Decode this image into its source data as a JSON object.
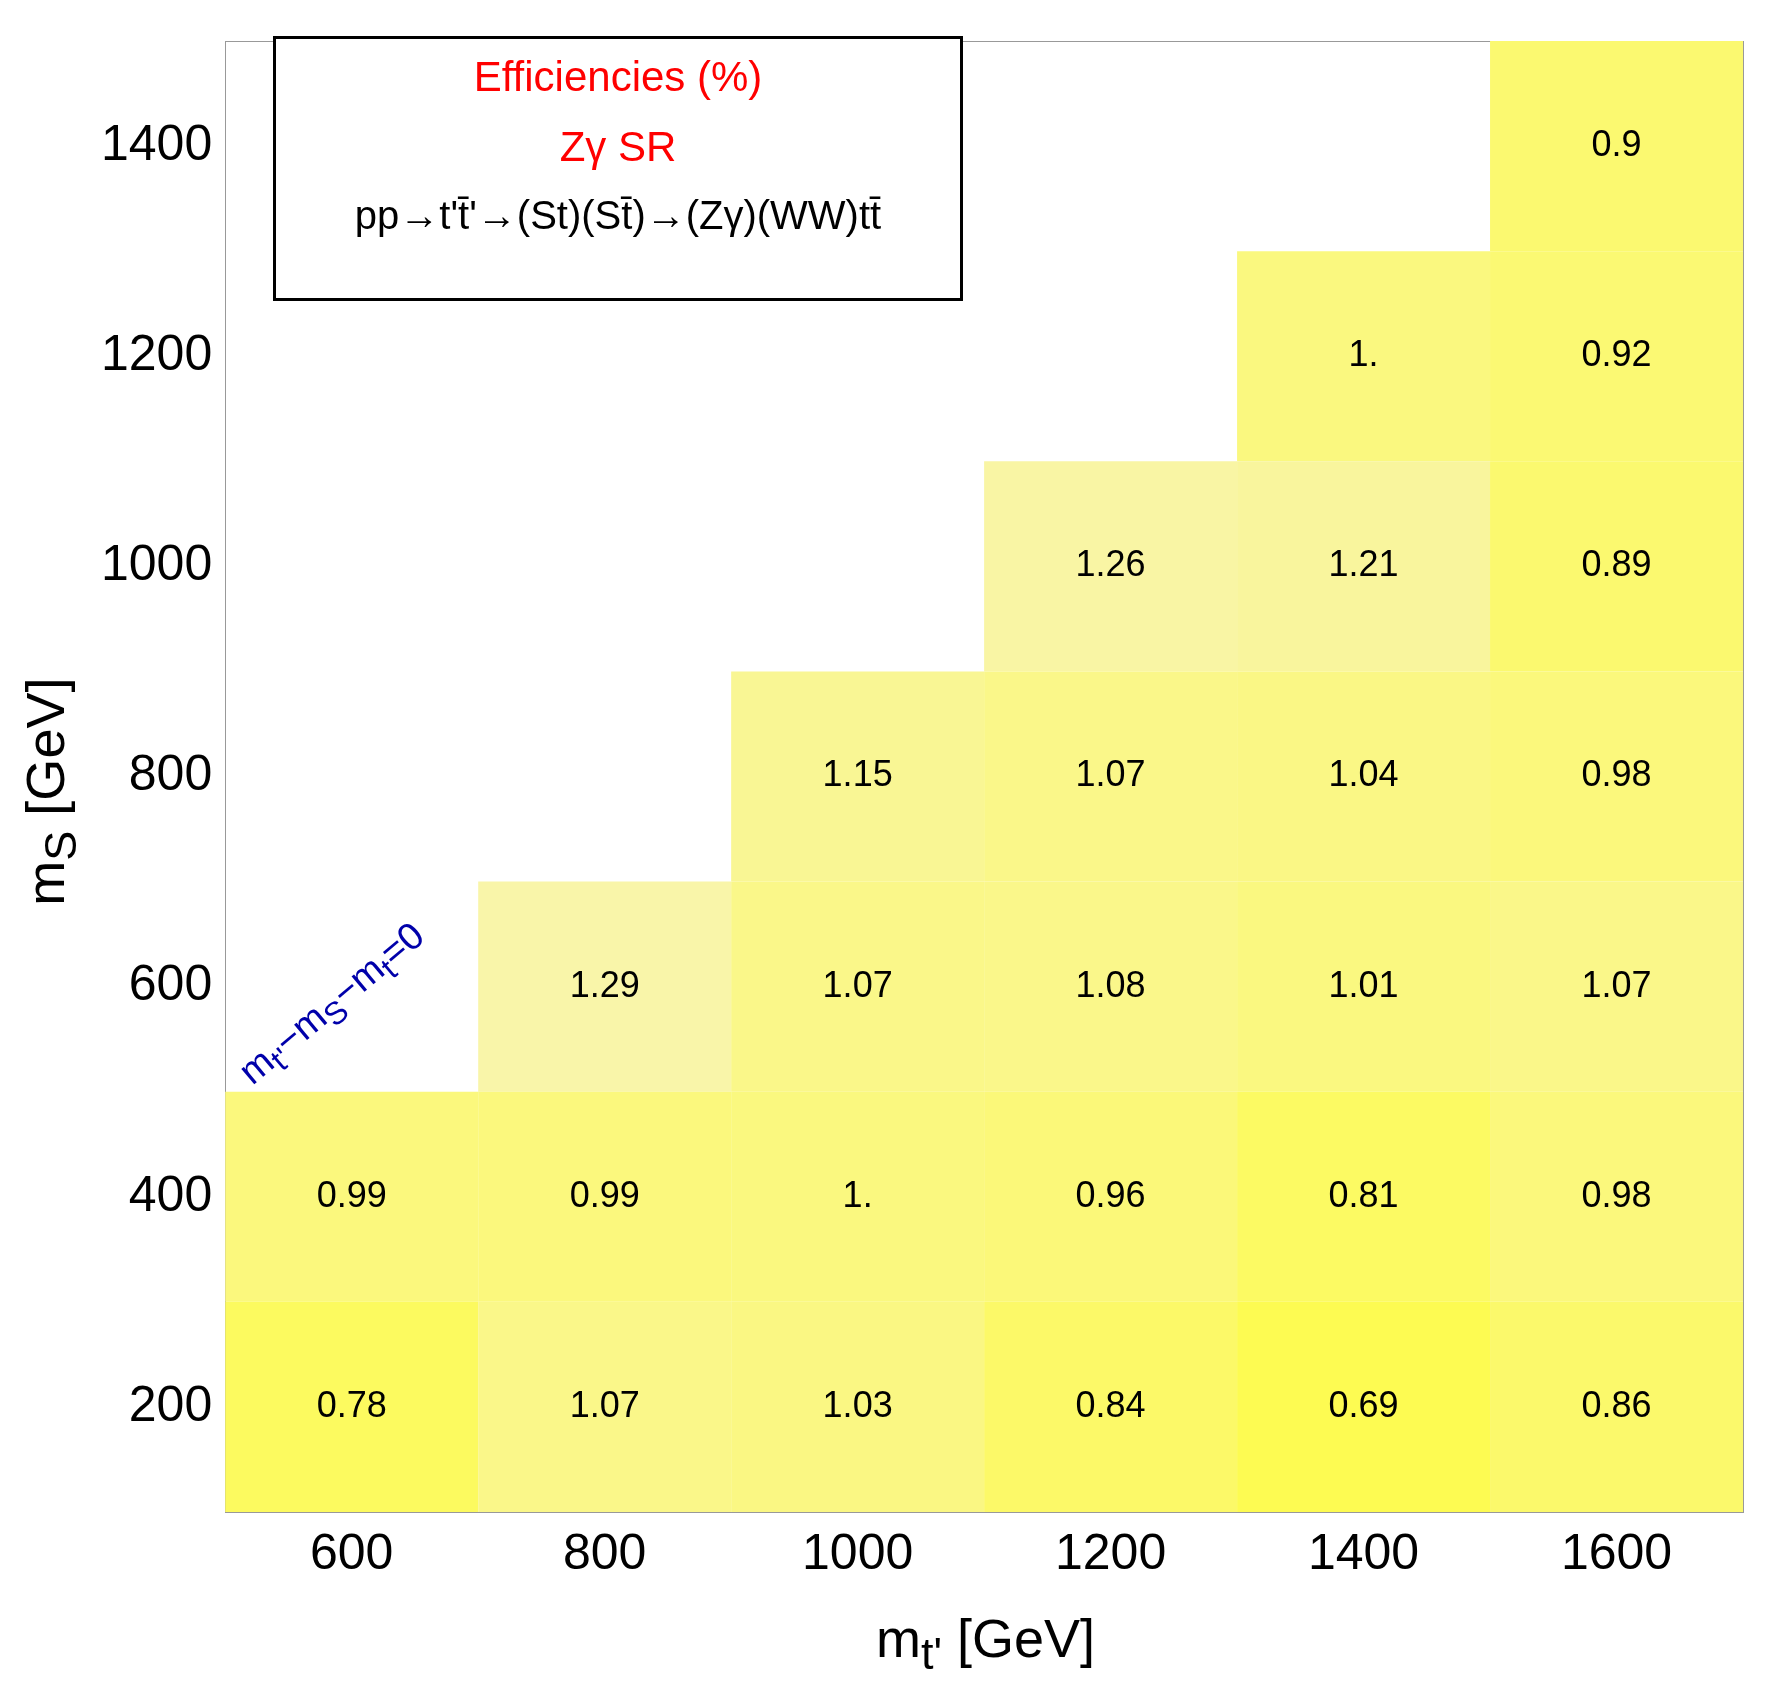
{
  "chart_data": {
    "type": "heatmap",
    "xlabel": "m$_{t'}$ [GeV]",
    "ylabel": "m$_{S}$ [GeV]",
    "categories": [
      "600",
      "800",
      "1000",
      "1200",
      "1400",
      "1600"
    ],
    "y_categories": [
      "1400",
      "1200",
      "1000",
      "800",
      "600",
      "400",
      "200"
    ],
    "color": "#faf77a",
    "cells": [
      [
        null,
        null,
        null,
        null,
        null,
        0.9
      ],
      [
        null,
        null,
        null,
        null,
        1.0,
        0.92
      ],
      [
        null,
        null,
        null,
        1.26,
        1.21,
        0.89
      ],
      [
        null,
        null,
        1.15,
        1.07,
        1.04,
        0.98
      ],
      [
        null,
        1.29,
        1.07,
        1.08,
        1.01,
        1.07
      ],
      [
        0.99,
        0.99,
        1.0,
        0.96,
        0.81,
        0.98
      ],
      [
        0.78,
        1.07,
        1.03,
        0.84,
        0.69,
        0.86
      ]
    ],
    "cell_labels": [
      [
        null,
        null,
        null,
        null,
        null,
        "0.9"
      ],
      [
        null,
        null,
        null,
        null,
        "1.",
        "0.92"
      ],
      [
        null,
        null,
        null,
        "1.26",
        "1.21",
        "0.89"
      ],
      [
        null,
        null,
        "1.15",
        "1.07",
        "1.04",
        "0.98"
      ],
      [
        null,
        "1.29",
        "1.07",
        "1.08",
        "1.01",
        "1.07"
      ],
      [
        "0.99",
        "0.99",
        "1.",
        "0.96",
        "0.81",
        "0.98"
      ],
      [
        "0.78",
        "1.07",
        "1.03",
        "0.84",
        "0.69",
        "0.86"
      ]
    ],
    "data_labels": true,
    "title": "Efficiencies (%)",
    "subtitle": "Zγ SR",
    "annotations": [
      "pp→t't̄'→(St)(St̄)→(Zγ)(WW)tt̄",
      "m$_{t'}$−m$_{S}$−m$_{t}$=0"
    ]
  }
}
